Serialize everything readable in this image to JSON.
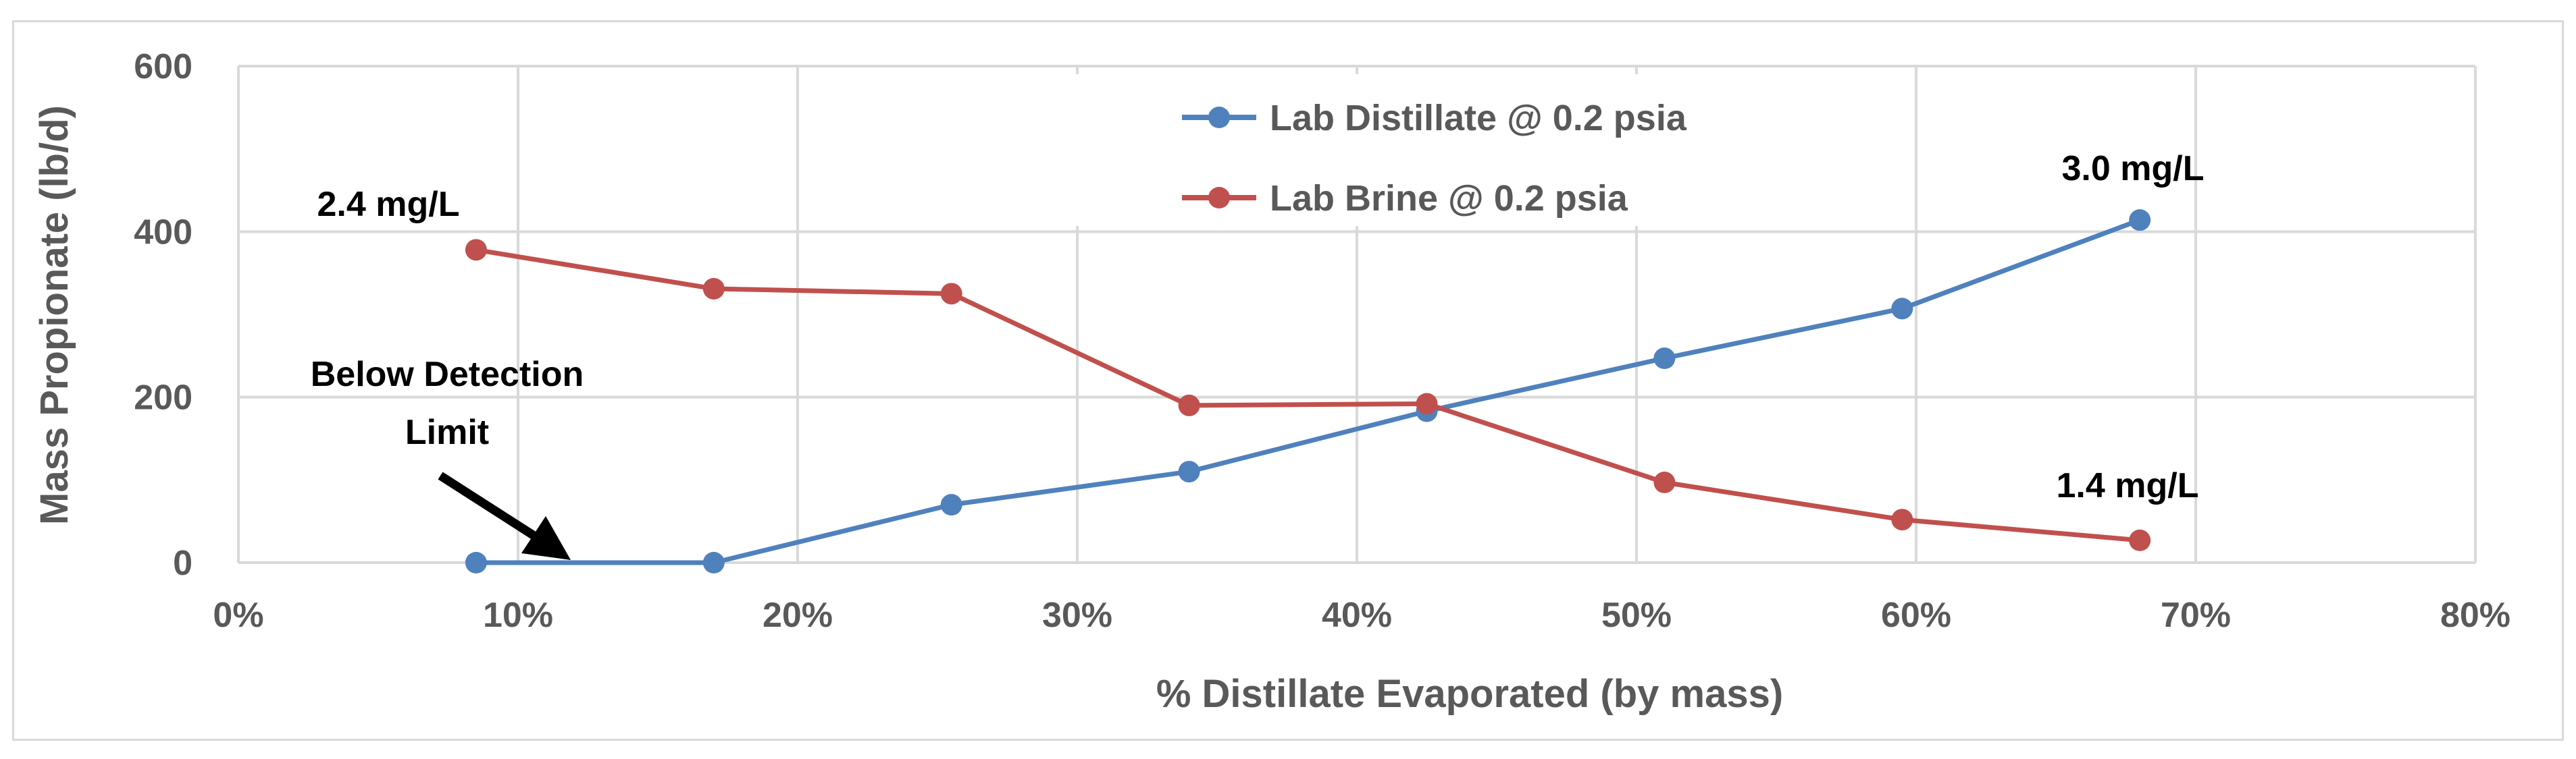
{
  "chart_data": {
    "type": "line",
    "title": "",
    "xlabel": "% Distillate Evaporated (by mass)",
    "ylabel": "Mass Propionate (lb/d)",
    "xlim": [
      0,
      80
    ],
    "ylim": [
      0,
      600
    ],
    "x_ticks": [
      "0%",
      "10%",
      "20%",
      "30%",
      "40%",
      "50%",
      "60%",
      "70%",
      "80%"
    ],
    "y_ticks": [
      "0",
      "200",
      "400",
      "600"
    ],
    "grid": true,
    "legend_position": "top-center",
    "series": [
      {
        "name": "Lab Distillate @ 0.2 psia",
        "color": "#4f81bd",
        "x": [
          8.5,
          17,
          25.5,
          34,
          42.5,
          51,
          59.5,
          68
        ],
        "y": [
          0,
          0,
          70,
          110,
          183,
          247,
          307,
          414
        ]
      },
      {
        "name": "Lab Brine @ 0.2 psia",
        "color": "#c0504d",
        "x": [
          8.5,
          17,
          25.5,
          34,
          42.5,
          51,
          59.5,
          68
        ],
        "y": [
          378,
          331,
          325,
          190,
          192,
          97,
          52,
          27
        ]
      }
    ],
    "annotations": [
      {
        "id": "brine_start",
        "text": "2.4 mg/L"
      },
      {
        "id": "distillate_end",
        "text": "3.0 mg/L"
      },
      {
        "id": "brine_end",
        "text": "1.4 mg/L"
      },
      {
        "id": "below_detection_line1",
        "text": "Below Detection"
      },
      {
        "id": "below_detection_line2",
        "text": "Limit"
      }
    ]
  }
}
